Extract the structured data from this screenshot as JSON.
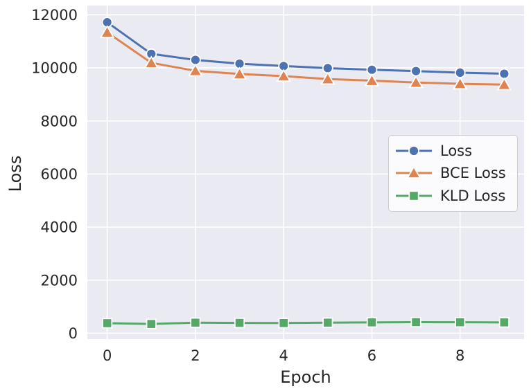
{
  "chart_data": {
    "type": "line",
    "title": "",
    "xlabel": "Epoch",
    "ylabel": "Loss",
    "x": [
      0,
      1,
      2,
      3,
      4,
      5,
      6,
      7,
      8,
      9
    ],
    "series": [
      {
        "name": "Loss",
        "marker": "circle",
        "color": "#4C72B0",
        "values": [
          11720,
          10530,
          10300,
          10160,
          10070,
          9990,
          9930,
          9880,
          9820,
          9780
        ]
      },
      {
        "name": "BCE Loss",
        "marker": "triangle",
        "color": "#DD8452",
        "values": [
          11340,
          10190,
          9890,
          9770,
          9690,
          9580,
          9520,
          9450,
          9400,
          9370
        ]
      },
      {
        "name": "KLD Loss",
        "marker": "square",
        "color": "#55A868",
        "values": [
          380,
          350,
          400,
          390,
          385,
          400,
          410,
          420,
          415,
          410
        ]
      }
    ],
    "xlim": [
      -0.45,
      9.45
    ],
    "ylim": [
      -220,
      12350
    ],
    "xticks": [
      0,
      2,
      4,
      6,
      8
    ],
    "xtick_labels": [
      "0",
      "2",
      "4",
      "6",
      "8"
    ],
    "yticks": [
      0,
      2000,
      4000,
      6000,
      8000,
      10000,
      12000
    ],
    "ytick_labels": [
      "0",
      "2000",
      "4000",
      "6000",
      "8000",
      "10000",
      "12000"
    ],
    "grid": true,
    "legend_position": "center-right",
    "colors": {
      "figure_bg": "#FFFFFF",
      "plot_bg": "#EAEAF2",
      "grid": "#FFFFFF",
      "text": "#262626",
      "legend_bg": "rgba(255,255,255,0.8)",
      "legend_border": "#CCCCCC",
      "marker_edge": "#FFFFFF"
    }
  }
}
